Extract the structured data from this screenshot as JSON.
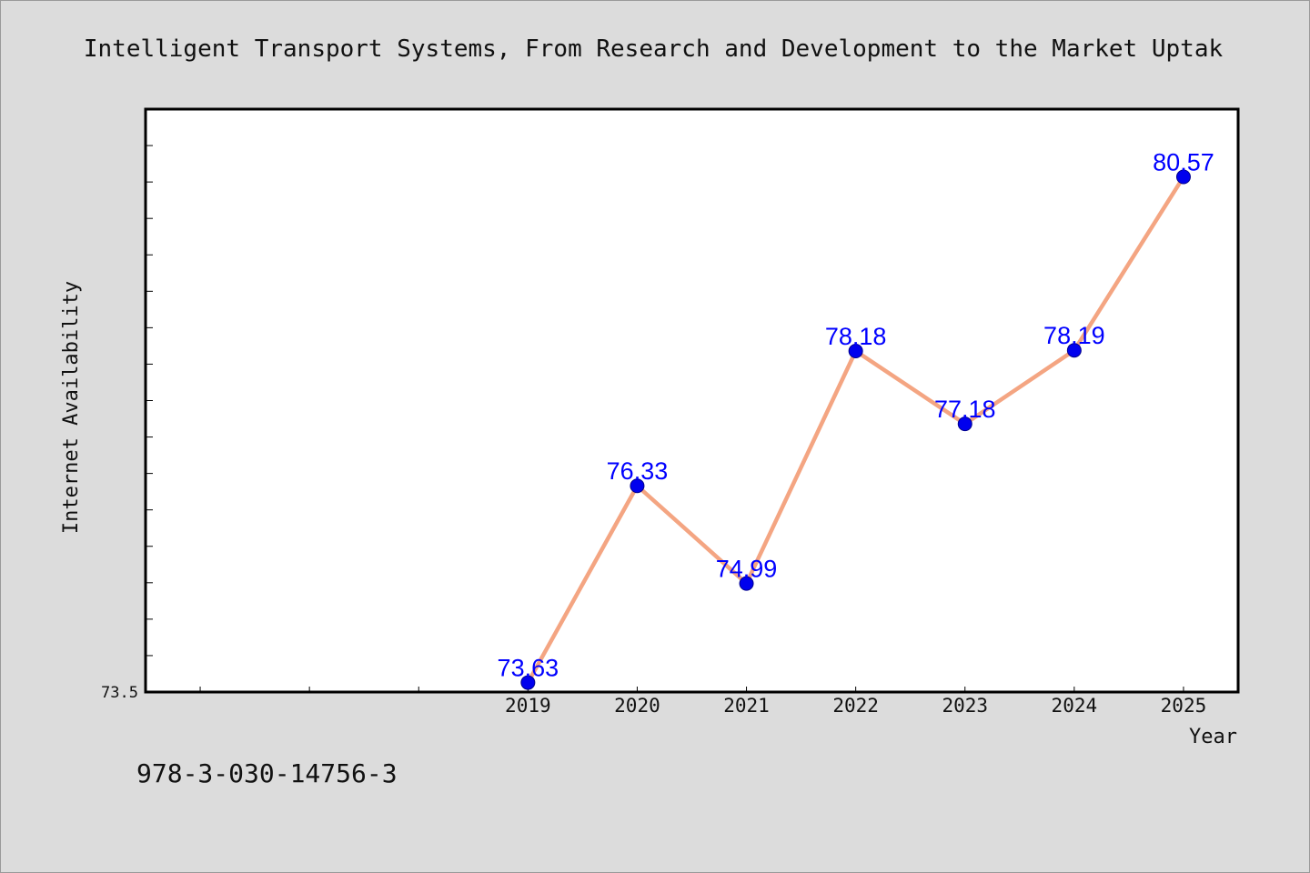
{
  "chart_data": {
    "type": "line",
    "title": "Intelligent Transport Systems, From Research and Development to the Market Uptak",
    "xlabel": "Year",
    "ylabel": "Internet Availability",
    "categories": [
      "2019",
      "2020",
      "2021",
      "2022",
      "2023",
      "2024",
      "2025"
    ],
    "series": [
      {
        "values": [
          73.63,
          76.33,
          74.99,
          78.18,
          77.18,
          78.19,
          80.57
        ],
        "labels": [
          "73.63",
          "76.33",
          "74.99",
          "78.18",
          "77.18",
          "78.19",
          "80.57"
        ]
      }
    ],
    "y_tick_label": "73.5",
    "ylim": [
      73.5,
      81.5
    ],
    "xlim": [
      2015.5,
      2025.5
    ],
    "grid": false,
    "colors": {
      "line": "#f4a582",
      "marker": "#0000ee",
      "label": "#0000ff",
      "background": "#dcdcdc",
      "plot_bg": "#ffffff"
    }
  },
  "footer": {
    "isbn": "978-3-030-14756-3"
  }
}
